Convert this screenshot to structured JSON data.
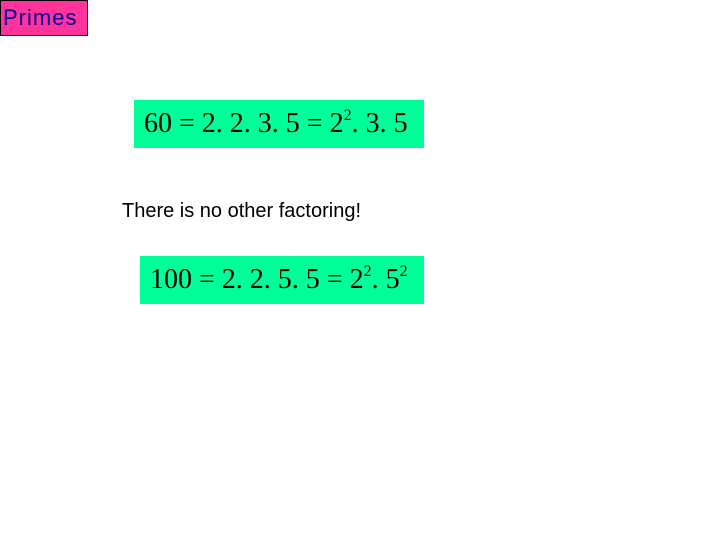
{
  "colors": {
    "badge_bg": "#ff3399",
    "badge_text": "#000099",
    "eq_bg": "#00ff99",
    "page_bg": "#ffffff"
  },
  "title": "Primes",
  "equation1": {
    "lhs": "60",
    "expanded": "2. 2. 3. 5",
    "power_base": "2",
    "power_exp": "2",
    "tail": ". 3. 5"
  },
  "caption": "There is no other factoring!",
  "equation2": {
    "lhs": "100",
    "expanded": "2. 2. 5. 5",
    "p1_base": "2",
    "p1_exp": "2",
    "p2_base": "5",
    "p2_exp": "2"
  }
}
